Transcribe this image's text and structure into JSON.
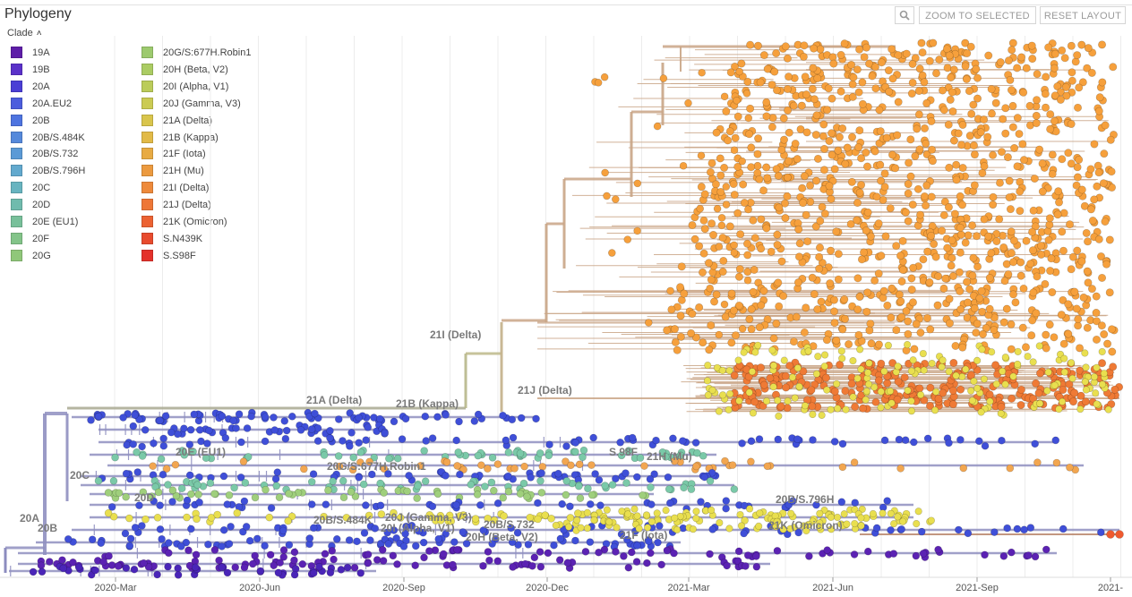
{
  "header": {
    "title": "Phylogeny",
    "zoom_label": "ZOOM TO SELECTED",
    "reset_label": "RESET LAYOUT",
    "search_icon": "magnifier-icon"
  },
  "legend": {
    "title": "Clade",
    "col1": [
      {
        "label": "19A",
        "color": "#5e1ea8"
      },
      {
        "label": "19B",
        "color": "#5a31c9"
      },
      {
        "label": "20A",
        "color": "#4b3ed5"
      },
      {
        "label": "20A.EU2",
        "color": "#4c5ddd"
      },
      {
        "label": "20B",
        "color": "#4e74e0"
      },
      {
        "label": "20B/S.484K",
        "color": "#5589db"
      },
      {
        "label": "20B/S.732",
        "color": "#5b9ad6"
      },
      {
        "label": "20B/S.796H",
        "color": "#62a9ce"
      },
      {
        "label": "20C",
        "color": "#68b4c0"
      },
      {
        "label": "20D",
        "color": "#70bbad"
      },
      {
        "label": "20E (EU1)",
        "color": "#78c09a"
      },
      {
        "label": "20F",
        "color": "#83c489"
      },
      {
        "label": "20G",
        "color": "#90c77a"
      }
    ],
    "col2": [
      {
        "label": "20G/S:677H.Robin1",
        "color": "#9dca6e"
      },
      {
        "label": "20H (Beta, V2)",
        "color": "#abcc63"
      },
      {
        "label": "20I (Alpha, V1)",
        "color": "#bbcc5a"
      },
      {
        "label": "20J (Gamma, V3)",
        "color": "#cbcb53"
      },
      {
        "label": "21A (Delta)",
        "color": "#d9c54c"
      },
      {
        "label": "21B (Kappa)",
        "color": "#e2ba47"
      },
      {
        "label": "21F (Iota)",
        "color": "#e8ab43"
      },
      {
        "label": "21H (Mu)",
        "color": "#ec9a3f"
      },
      {
        "label": "21I (Delta)",
        "color": "#ee8a3b"
      },
      {
        "label": "21J (Delta)",
        "color": "#ee7737"
      },
      {
        "label": "21K (Omicron)",
        "color": "#ec6232"
      },
      {
        "label": "S.N439K",
        "color": "#e84b2e"
      },
      {
        "label": "S.S98F",
        "color": "#e4312b"
      }
    ]
  },
  "axis": {
    "ticks": [
      "2020-Mar",
      "2020-Jun",
      "2020-Sep",
      "2020-Dec",
      "2021-Mar",
      "2021-Jun",
      "2021-Sep",
      "2021-"
    ]
  },
  "clade_labels": [
    "21I (Delta)",
    "21A (Delta)",
    "21B (Kappa)",
    "21J (Delta)",
    "20E (EU1)",
    "20C",
    "S.98F",
    "21H (Mu)",
    "20D",
    "20A",
    "20B",
    "20B/S.484K",
    "20J (Gamma, V3)",
    "20B/S.732",
    "20B/S.796H",
    "21K (Omicron)",
    "20I (Alpha, V1)",
    "21F (Iota)",
    "20G/S:677H.Robin1",
    "20H (Beta, V2)"
  ],
  "colors": {
    "delta_branch": "#c9a586",
    "trunk_branch": "#8f8fc0",
    "delta_tip": "#f6a03c",
    "yellow_tip": "#e9df4f",
    "omicron_tip": "#ef7a35",
    "blue_tip": "#3f4fd8",
    "purple_tip": "#5b22b3",
    "teal_tip": "#7ac9a8"
  }
}
